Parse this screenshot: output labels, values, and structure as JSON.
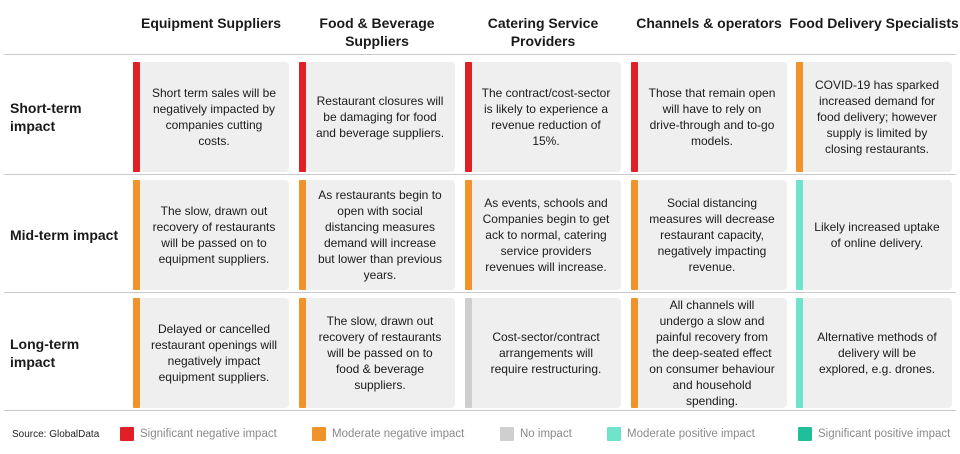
{
  "colors": {
    "significant_negative": "#e01f26",
    "moderate_negative": "#f0932b",
    "no_impact": "#cfcfcf",
    "moderate_positive": "#6fe3cc",
    "significant_positive": "#1fbf9a"
  },
  "columns": [
    "Equipment Suppliers",
    "Food & Beverage Suppliers",
    "Catering Service Providers",
    "Channels & operators",
    "Food Delivery Specialists"
  ],
  "rows": [
    {
      "label": "Short-term impact",
      "cells": [
        {
          "text": "Short term sales will be negatively impacted by companies cutting costs.",
          "impact": "significant_negative"
        },
        {
          "text": "Restaurant closures will be damaging for food and beverage suppliers.",
          "impact": "significant_negative"
        },
        {
          "text": "The contract/cost-sector is likely to experience a revenue reduction of 15%.",
          "impact": "significant_negative"
        },
        {
          "text": "Those that remain open will have to rely on drive-through and to-go models.",
          "impact": "significant_negative"
        },
        {
          "text": "COVID-19 has sparked increased demand for food delivery; however supply is limited by closing restaurants.",
          "impact": "moderate_negative"
        }
      ]
    },
    {
      "label": "Mid-term impact",
      "cells": [
        {
          "text": "The slow, drawn out recovery of restaurants will be passed on to equipment suppliers.",
          "impact": "moderate_negative"
        },
        {
          "text": "As restaurants begin to open with social distancing measures demand will increase but lower than previous years.",
          "impact": "moderate_negative"
        },
        {
          "text": "As events, schools and Companies begin to get ack to normal, catering service providers revenues will increase.",
          "impact": "moderate_negative"
        },
        {
          "text": "Social distancing measures will decrease restaurant capacity, negatively impacting revenue.",
          "impact": "moderate_negative"
        },
        {
          "text": "Likely increased uptake of  online delivery.",
          "impact": "moderate_positive"
        }
      ]
    },
    {
      "label": "Long-term impact",
      "cells": [
        {
          "text": "Delayed or cancelled restaurant openings will negatively impact equipment suppliers.",
          "impact": "moderate_negative"
        },
        {
          "text": "The slow, drawn out recovery of restaurants will be passed on to food & beverage suppliers.",
          "impact": "moderate_negative"
        },
        {
          "text": "Cost-sector/contract arrangements will require restructuring.",
          "impact": "no_impact"
        },
        {
          "text": "All channels will undergo a slow and painful recovery from the deep-seated effect on consumer behaviour and household spending.",
          "impact": "moderate_negative"
        },
        {
          "text": "Alternative methods of delivery will be explored, e.g. drones.",
          "impact": "moderate_positive"
        }
      ]
    }
  ],
  "source": "Source: GlobalData",
  "legend": [
    {
      "label": "Significant negative impact",
      "impact": "significant_negative"
    },
    {
      "label": "Moderate negative impact",
      "impact": "moderate_negative"
    },
    {
      "label": "No impact",
      "impact": "no_impact"
    },
    {
      "label": "Moderate positive impact",
      "impact": "moderate_positive"
    },
    {
      "label": "Significant positive impact",
      "impact": "significant_positive"
    }
  ]
}
